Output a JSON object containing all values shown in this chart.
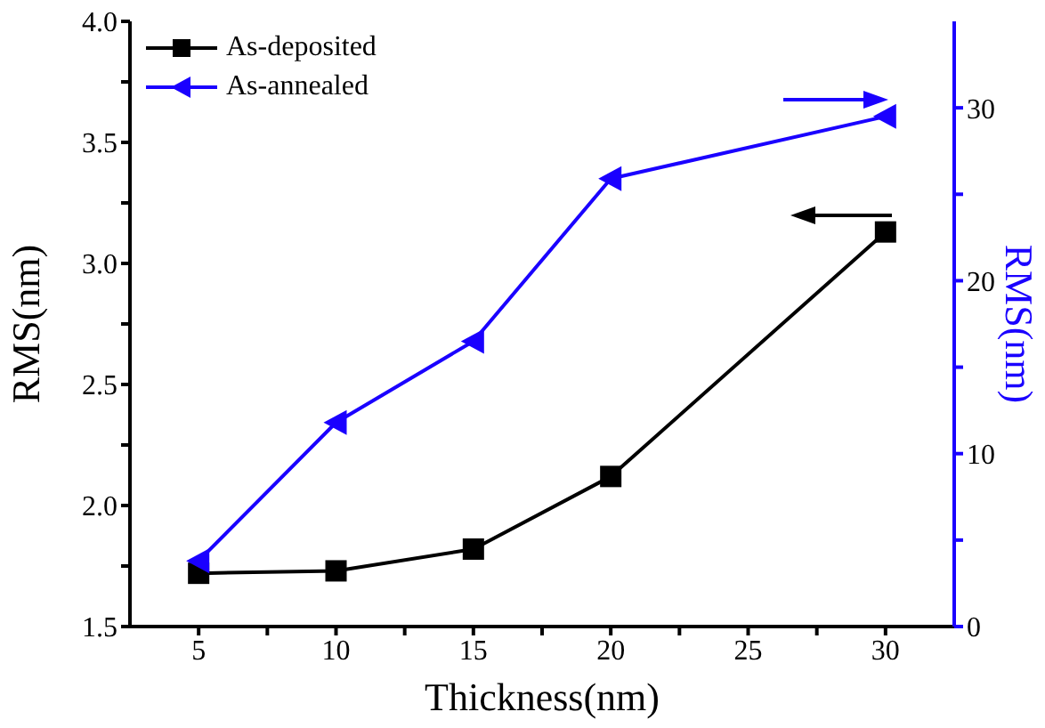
{
  "chart_data": {
    "type": "line",
    "xlabel": "Thickness(nm)",
    "ylabel": "RMS(nm)",
    "y2label": "RMS(nm)",
    "x": [
      5,
      10,
      15,
      20,
      30
    ],
    "series": [
      {
        "name": "As-deposited",
        "color": "#000000",
        "marker": "square",
        "values": [
          1.72,
          1.73,
          1.82,
          2.12,
          3.13
        ]
      },
      {
        "name": "As-annealed",
        "color": "#1a00ff",
        "marker": "triangle",
        "axis": "y2",
        "values": [
          3.8,
          11.8,
          16.5,
          25.9,
          29.5
        ]
      }
    ],
    "xlim": [
      2.5,
      32.5
    ],
    "xticks": [
      5,
      {
        "value": 7.5,
        "label": null
      },
      10,
      {
        "value": 12.5,
        "label": null
      },
      15,
      {
        "value": 17.5,
        "label": null
      },
      20,
      {
        "value": 22.5,
        "label": null
      },
      25,
      {
        "value": 27.5,
        "label": null
      },
      30
    ],
    "ylim": [
      1.5,
      4.0
    ],
    "yticks": [
      {
        "value": 1.5,
        "label": "1.5"
      },
      {
        "value": 1.75,
        "label": null
      },
      {
        "value": 2.0,
        "label": "2.0"
      },
      {
        "value": 2.25,
        "label": null
      },
      {
        "value": 2.5,
        "label": "2.5"
      },
      {
        "value": 2.75,
        "label": null
      },
      {
        "value": 3.0,
        "label": "3.0"
      },
      {
        "value": 3.25,
        "label": null
      },
      {
        "value": 3.5,
        "label": "3.5"
      },
      {
        "value": 3.75,
        "label": null
      },
      {
        "value": 4.0,
        "label": "4.0"
      }
    ],
    "y2lim": [
      0,
      35
    ],
    "y2ticks": [
      0,
      {
        "value": 5,
        "label": null
      },
      10,
      {
        "value": 15,
        "label": null
      },
      20,
      {
        "value": 25,
        "label": null
      },
      30
    ],
    "grid": false,
    "legend": "top left",
    "line_style": "solid"
  }
}
